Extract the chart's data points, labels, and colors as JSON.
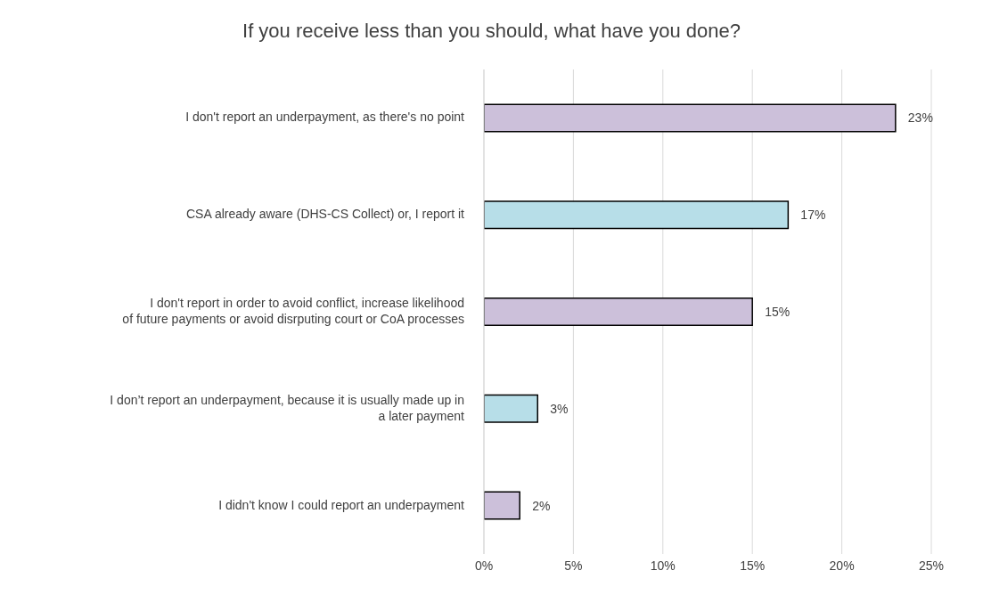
{
  "chart_data": {
    "type": "bar",
    "orientation": "horizontal",
    "title": "If you receive less than you should, what have you done?",
    "categories": [
      "I don't report an underpayment, as there's no point",
      "CSA already aware (DHS-CS Collect) or, I report it",
      "I don't report in order to avoid conflict, increase likelihood of future payments or avoid disrputing court or CoA processes",
      "I don’t report an underpayment, because it is usually made up in a later payment",
      "I didn't know I could report an underpayment"
    ],
    "values": [
      23,
      17,
      15,
      3,
      2
    ],
    "colors": [
      "#ccc0da",
      "#b7dee8",
      "#ccc0da",
      "#b7dee8",
      "#ccc0da"
    ],
    "value_labels": [
      "23%",
      "17%",
      "15%",
      "3%",
      "2%"
    ],
    "xlim": [
      0,
      25
    ],
    "xticks": [
      {
        "value": 0,
        "label": "0%"
      },
      {
        "value": 5,
        "label": "5%"
      },
      {
        "value": 10,
        "label": "10%"
      },
      {
        "value": 15,
        "label": "15%"
      },
      {
        "value": 20,
        "label": "20%"
      },
      {
        "value": 25,
        "label": "25%"
      }
    ],
    "grid": "x",
    "legend": false
  }
}
